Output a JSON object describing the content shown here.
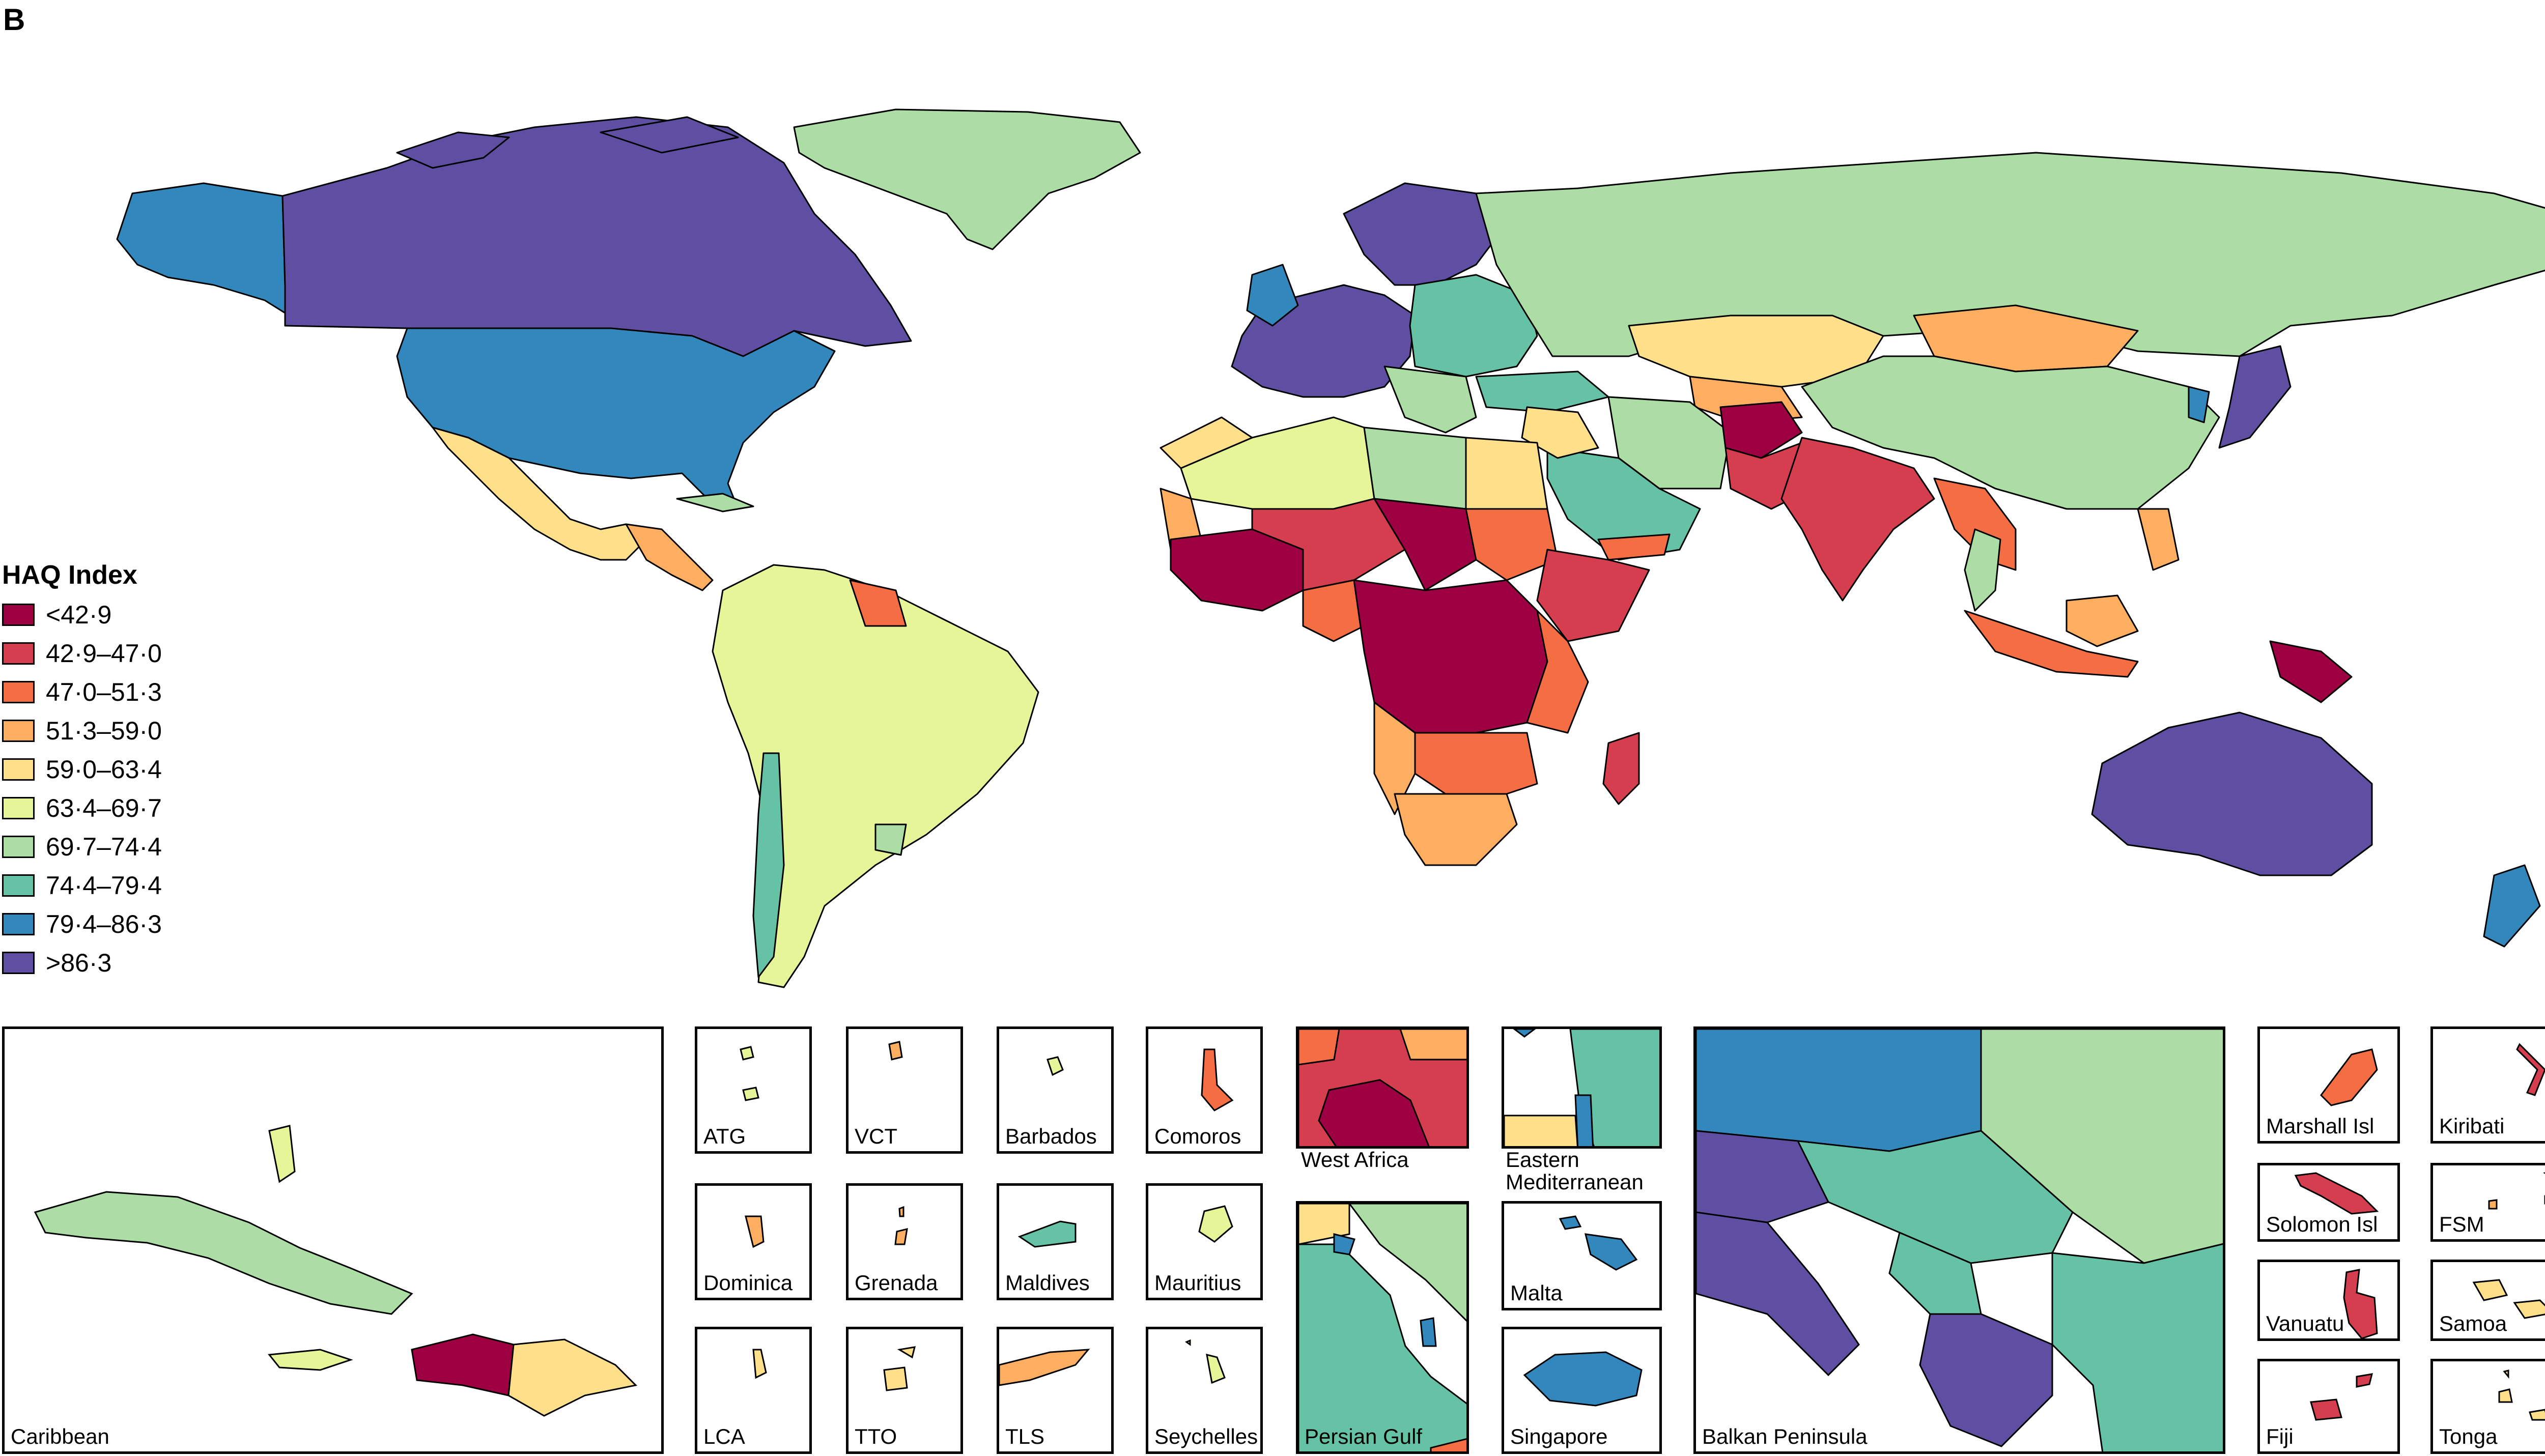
{
  "panel_letter": "B",
  "legend": {
    "title": "HAQ Index",
    "items": [
      {
        "label": "<42·9",
        "color": "#9e0142"
      },
      {
        "label": "42·9–47·0",
        "color": "#d53e4f"
      },
      {
        "label": "47·0–51·3",
        "color": "#f46d43"
      },
      {
        "label": "51·3–59·0",
        "color": "#fdae61"
      },
      {
        "label": "59·0–63·4",
        "color": "#fee08b"
      },
      {
        "label": "63·4–69·7",
        "color": "#e6f598"
      },
      {
        "label": "69·7–74·4",
        "color": "#abdda4"
      },
      {
        "label": "74·4–79·4",
        "color": "#66c2a5"
      },
      {
        "label": "79·4–86·3",
        "color": "#3288bd"
      },
      {
        "label": ">86·3",
        "color": "#5e4fa2"
      }
    ]
  },
  "insets": {
    "caribbean": "Caribbean",
    "atg": "ATG",
    "vct": "VCT",
    "barbados": "Barbados",
    "comoros": "Comoros",
    "west_africa": "West Africa",
    "eastern_med": "Eastern\nMediterranean",
    "dominica": "Dominica",
    "grenada": "Grenada",
    "maldives": "Maldives",
    "mauritius": "Mauritius",
    "malta": "Malta",
    "lca": "LCA",
    "tto": "TTO",
    "tls": "TLS",
    "seychelles": "Seychelles",
    "persian_gulf": "Persian Gulf",
    "singapore": "Singapore",
    "balkan": "Balkan Peninsula",
    "marshall": "Marshall Isl",
    "kiribati": "Kiribati",
    "solomon": "Solomon Isl",
    "fsm": "FSM",
    "vanuatu": "Vanuatu",
    "samoa": "Samoa",
    "fiji": "Fiji",
    "tonga": "Tonga"
  }
}
